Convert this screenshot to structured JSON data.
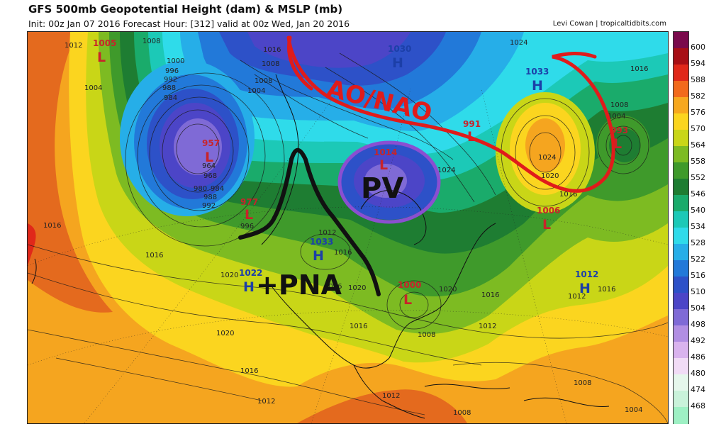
{
  "header": {
    "title": "GFS 500mb Geopotential Height (dam) & MSLP (mb)",
    "subtitle": "Init: 00z Jan 07 2016   Forecast Hour: [312]   valid at 00z Wed, Jan 20 2016",
    "credit": "Levi Cowan | tropicaltidbits.com"
  },
  "colorbar": {
    "levels": [
      "600",
      "594",
      "588",
      "582",
      "576",
      "570",
      "564",
      "558",
      "552",
      "546",
      "540",
      "534",
      "528",
      "522",
      "516",
      "510",
      "504",
      "498",
      "492",
      "486",
      "480",
      "474",
      "468"
    ],
    "colors": [
      "#7a0a4c",
      "#a80f16",
      "#e0281a",
      "#f26a1c",
      "#f7a81f",
      "#fbd51f",
      "#c9d617",
      "#7dbb22",
      "#3f9a2b",
      "#1e7d32",
      "#1aab6b",
      "#1cc9b7",
      "#2fdbea",
      "#26aee8",
      "#2279d9",
      "#2d51c8",
      "#4c45c7",
      "#7f6ad6",
      "#b18ee3",
      "#d9b3ee",
      "#f1dcf6",
      "#e6f7ec",
      "#c9f2da",
      "#9ef0c4"
    ]
  },
  "pressure_centers": [
    {
      "type": "L",
      "value": "1005",
      "color": "#c8232a"
    },
    {
      "type": "H",
      "value": "1030",
      "color": "#1c3fa8"
    },
    {
      "type": "H",
      "value": "1033",
      "color": "#1c3fa8"
    },
    {
      "type": "L",
      "value": "957",
      "color": "#c8232a"
    },
    {
      "type": "L",
      "value": "1014",
      "color": "#c8232a"
    },
    {
      "type": "L",
      "value": "991",
      "color": "#c8232a"
    },
    {
      "type": "L",
      "value": "993",
      "color": "#c8232a"
    },
    {
      "type": "L",
      "value": "977",
      "color": "#c8232a"
    },
    {
      "type": "H",
      "value": "1033",
      "color": "#1c3fa8"
    },
    {
      "type": "H",
      "value": "1022",
      "color": "#1c3fa8"
    },
    {
      "type": "L",
      "value": "1006",
      "color": "#c8232a"
    },
    {
      "type": "L",
      "value": "1000",
      "color": "#c8232a"
    },
    {
      "type": "H",
      "value": "1012",
      "color": "#1c3fa8"
    }
  ],
  "isobar_labels": [
    "1012",
    "1008",
    "1004",
    "1008",
    "1016",
    "1008",
    "1004",
    "1000",
    "996",
    "992",
    "988",
    "984",
    "964",
    "968",
    "972",
    "976",
    "980",
    "984",
    "988",
    "992",
    "996",
    "1016",
    "1016",
    "1020",
    "1016",
    "1016",
    "1016",
    "1012",
    "1020",
    "1024",
    "1024",
    "1020",
    "1016",
    "1016",
    "1008",
    "1004",
    "1016",
    "1020",
    "1016",
    "1016",
    "1008",
    "1012",
    "1012",
    "1012",
    "1020",
    "1016",
    "1016",
    "1012",
    "1008",
    "1004",
    "1008",
    "1024"
  ],
  "annotations": {
    "ao_nao": "AO/NAO",
    "pv": "PV",
    "pna": "+PNA"
  }
}
